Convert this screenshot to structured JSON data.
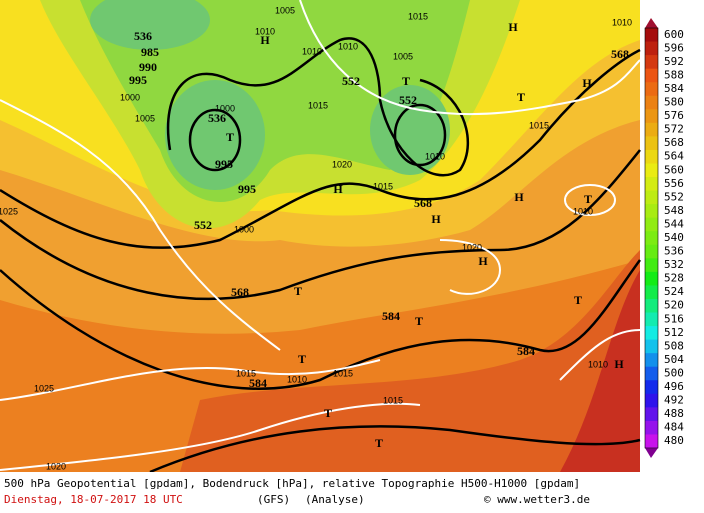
{
  "map": {
    "labels": [
      "536",
      "985",
      "990",
      "995",
      "1000",
      "1005",
      "536",
      "T",
      "1000",
      "995",
      "995",
      "1000",
      "552",
      "568",
      "1010",
      "H",
      "1005",
      "1010",
      "1010",
      "552",
      "1005",
      "T",
      "552",
      "1015",
      "1020",
      "H",
      "1015",
      "568",
      "H",
      "1010",
      "1015",
      "1015",
      "H",
      "568",
      "H",
      "T",
      "H",
      "T",
      "1010",
      "1020",
      "H",
      "T",
      "584",
      "T",
      "T",
      "584",
      "1015",
      "584",
      "1010",
      "T",
      "1015",
      "1015",
      "T",
      "T",
      "1010",
      "H",
      "1025",
      "1020",
      "1025",
      "1010"
    ]
  },
  "colorbar": {
    "labels": [
      600,
      596,
      592,
      588,
      584,
      580,
      576,
      572,
      568,
      564,
      560,
      556,
      552,
      548,
      544,
      540,
      536,
      532,
      528,
      524,
      520,
      516,
      512,
      508,
      504,
      500,
      496,
      492,
      488,
      484,
      480
    ]
  },
  "footer": {
    "description": "500 hPa Geopotential [gpdam], Bodendruck [hPa], relative Topographie H500-H1000 [gpdam]",
    "date": "Dienstag, 18-07-2017  18 UTC",
    "model": "(GFS)",
    "run": "(Analyse)",
    "credit": "© www.wetter3.de"
  }
}
